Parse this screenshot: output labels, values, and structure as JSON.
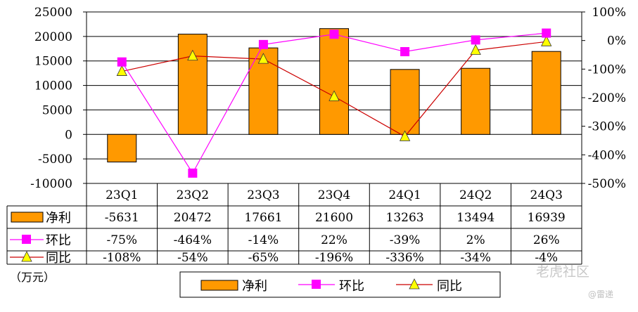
{
  "chart_data": {
    "type": "bar",
    "categories": [
      "23Q1",
      "23Q2",
      "23Q3",
      "23Q4",
      "24Q1",
      "24Q2",
      "24Q3"
    ],
    "series": [
      {
        "name": "净利",
        "type": "bar",
        "axis": "left",
        "color": "#ff9900",
        "values": [
          -5631,
          20472,
          17661,
          21600,
          13263,
          13494,
          16939
        ],
        "labels": [
          "-5631",
          "20472",
          "17661",
          "21600",
          "13263",
          "13494",
          "16939"
        ]
      },
      {
        "name": "环比",
        "type": "line",
        "axis": "right",
        "color": "#ff00ff",
        "marker": "square",
        "values": [
          -75,
          -464,
          -14,
          22,
          -39,
          2,
          26
        ],
        "labels": [
          "-75%",
          "-464%",
          "-14%",
          "22%",
          "-39%",
          "2%",
          "26%"
        ]
      },
      {
        "name": "同比",
        "type": "line",
        "axis": "right",
        "color": "#cc0000",
        "marker": "triangle",
        "values": [
          -108,
          -54,
          -65,
          -196,
          -336,
          -34,
          -4
        ],
        "labels": [
          "-108%",
          "-54%",
          "-65%",
          "-196%",
          "-336%",
          "-34%",
          "-4%"
        ]
      }
    ],
    "ylim_left": [
      -10000,
      25000
    ],
    "yticks_left": [
      "25000",
      "20000",
      "15000",
      "10000",
      "5000",
      "0",
      "-5000",
      "-10000"
    ],
    "ylim_right": [
      -500,
      100
    ],
    "yticks_right": [
      "100%",
      "0%",
      "-100%",
      "-200%",
      "-300%",
      "-400%",
      "-500%"
    ],
    "grid": true,
    "data_table": true,
    "legend_position": "bottom",
    "unit_label": "（万元）"
  },
  "watermark": {
    "main": "老虎社区",
    "sub": "@雷递"
  }
}
